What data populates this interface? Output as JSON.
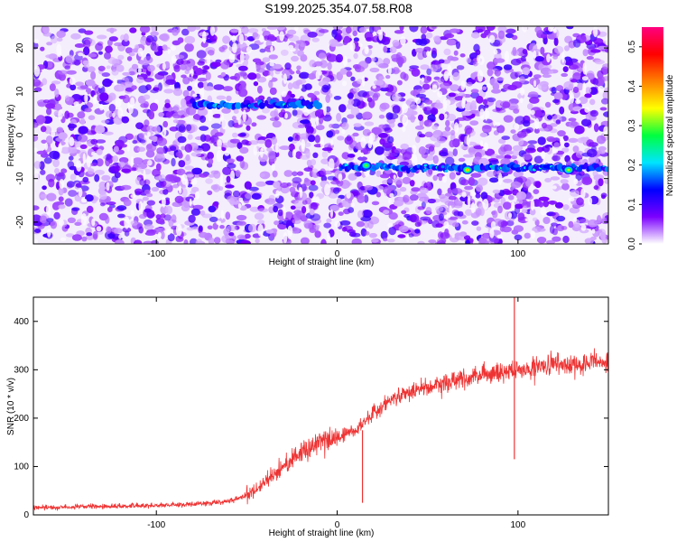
{
  "title": "S199.2025.354.07.58.R08",
  "chart_data": [
    {
      "type": "heatmap",
      "xlabel": "Height of straight line (km)",
      "ylabel": "Frequency (Hz)",
      "xlim": [
        -168,
        150
      ],
      "ylim": [
        -25,
        25
      ],
      "xticks": [
        -100,
        0,
        100
      ],
      "yticks": [
        -20,
        -10,
        0,
        10,
        20
      ],
      "colorbar": {
        "label": "Normalized spectral amplitude",
        "range": [
          0,
          0.55
        ],
        "ticks": [
          "0.0",
          "0.1",
          "0.2",
          "0.3",
          "0.4",
          "0.5"
        ],
        "colors": [
          "#ffffff",
          "#7b00ff",
          "#0000ff",
          "#00e5ff",
          "#00ff40",
          "#ffff00",
          "#ff8000",
          "#ff0000",
          "#ff0080"
        ]
      },
      "signal_tracks": [
        {
          "x_from": -80,
          "x_to": -10,
          "frequency_hz": 7
        },
        {
          "x_from": 2,
          "x_to": 150,
          "frequency_hz": -7.5
        }
      ],
      "peaks": [
        {
          "x": 16,
          "y": -7,
          "value": 0.3
        },
        {
          "x": 72,
          "y": -8,
          "value": 0.38
        },
        {
          "x": 128,
          "y": -8,
          "value": 0.33
        }
      ],
      "background_level": 0.05
    },
    {
      "type": "line",
      "xlabel": "Height of straight line (km)",
      "ylabel": "SNR (10 * v/v)",
      "xlim": [
        -168,
        150
      ],
      "ylim": [
        0,
        450
      ],
      "xticks": [
        -100,
        0,
        100
      ],
      "yticks": [
        0,
        100,
        200,
        300,
        400
      ],
      "color": "#ee3333",
      "series": [
        {
          "x": [
            -168,
            -120,
            -80,
            -60,
            -50,
            -40,
            -30,
            -20,
            -10,
            0,
            10,
            20,
            30,
            40,
            60,
            80,
            100,
            120,
            150
          ],
          "values": [
            15,
            18,
            22,
            28,
            40,
            65,
            100,
            130,
            150,
            160,
            175,
            210,
            240,
            255,
            275,
            290,
            300,
            310,
            315
          ]
        }
      ],
      "spikes": [
        {
          "x": 14,
          "values": [
            25,
            175
          ]
        },
        {
          "x": 98,
          "values": [
            115,
            450
          ]
        }
      ]
    }
  ]
}
